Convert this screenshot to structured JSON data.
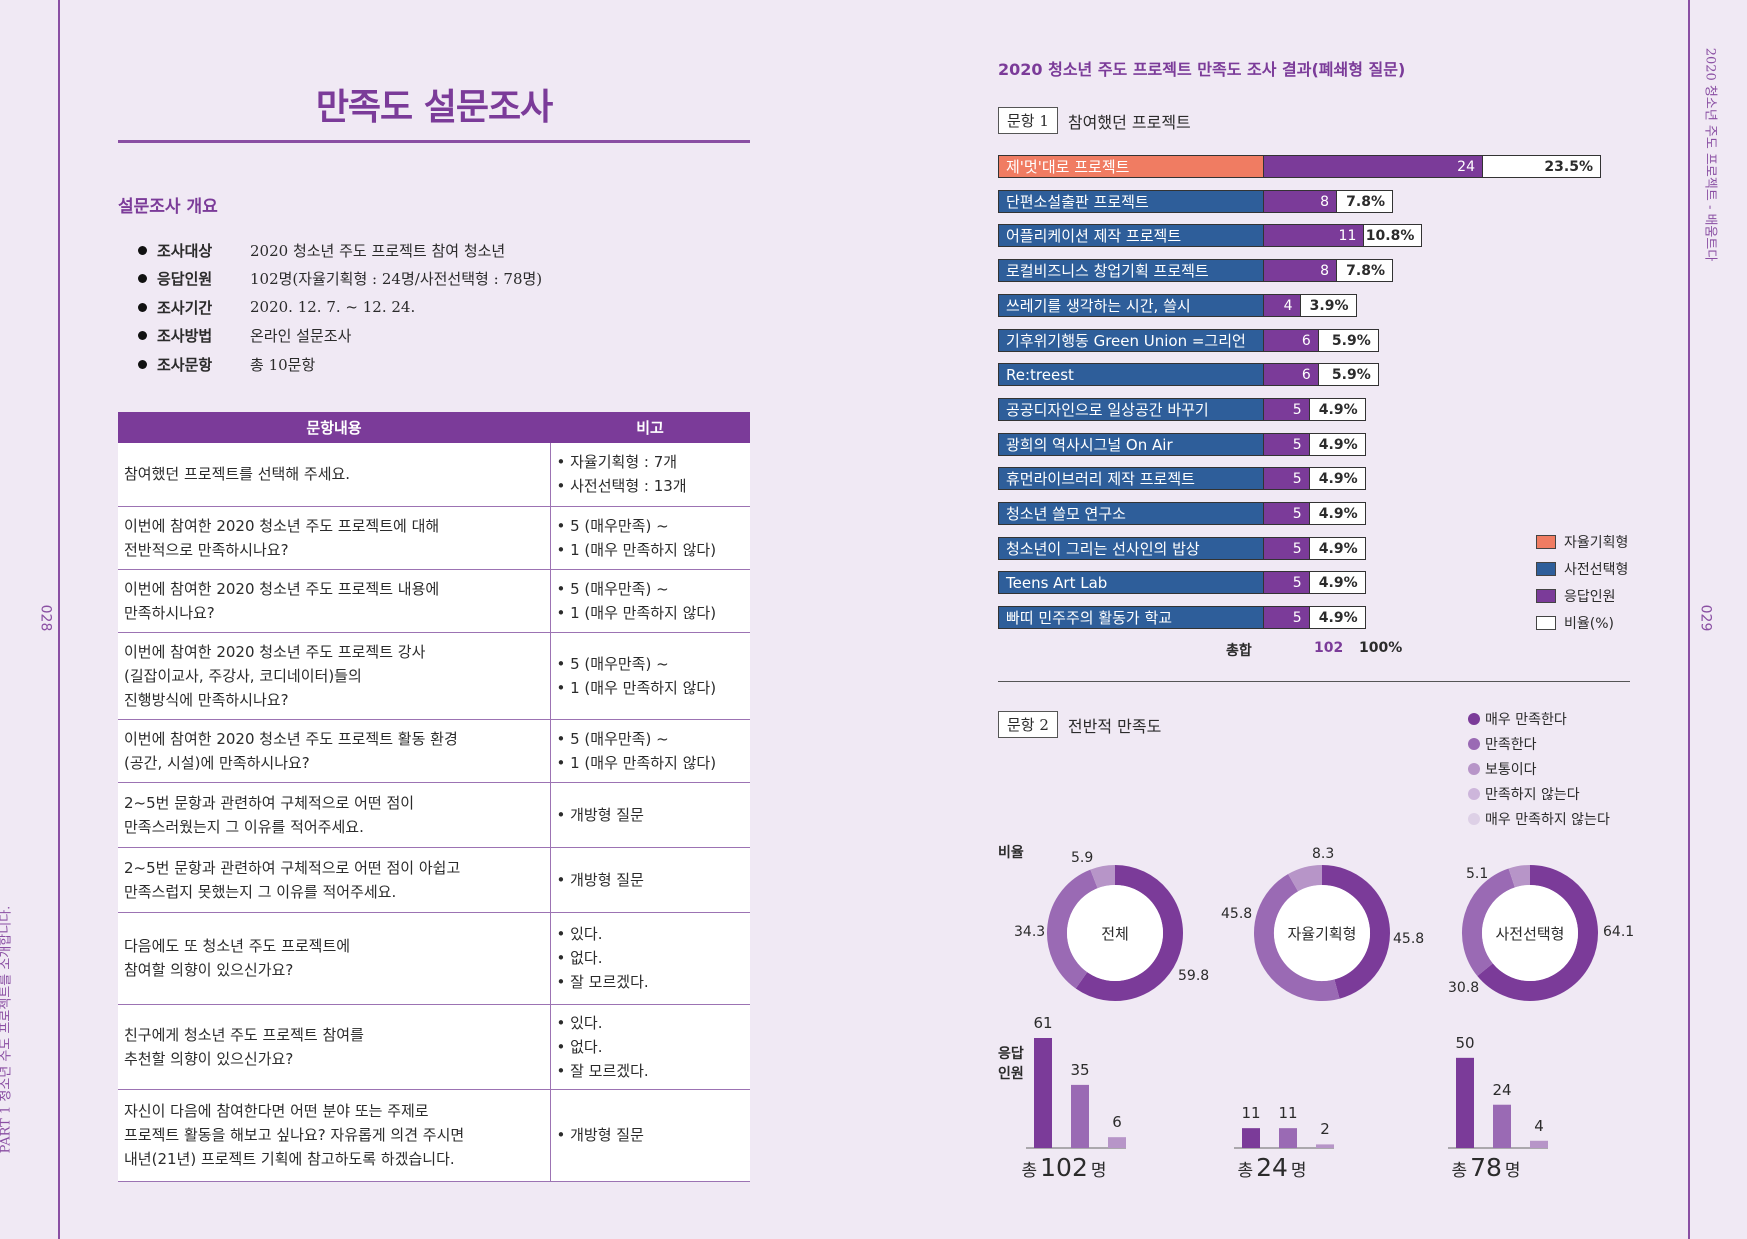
{
  "left_page": {
    "title": "만족도 설문조사",
    "section": "설문조사 개요",
    "overview": [
      {
        "key": "조사대상",
        "value": "2020 청소년 주도 프로젝트 참여 청소년"
      },
      {
        "key": "응답인원",
        "value": "102명(자율기획형 : 24명/사전선택형 : 78명)"
      },
      {
        "key": "조사기간",
        "value": "2020. 12. 7. ~ 12. 24."
      },
      {
        "key": "조사방법",
        "value": "온라인 설문조사"
      },
      {
        "key": "조사문항",
        "value": "총 10문항"
      }
    ],
    "table": {
      "headers": [
        "문항내용",
        "비고"
      ],
      "rows": [
        {
          "q": [
            "참여했던 프로젝트를 선택해 주세요."
          ],
          "note": [
            "• 자율기획형 : 7개",
            "• 사전선택형 : 13개"
          ]
        },
        {
          "q": [
            "이번에 참여한 2020 청소년 주도 프로젝트에 대해",
            "전반적으로 만족하시나요?"
          ],
          "note": [
            "• 5 (매우만족) ~",
            "• 1 (매우 만족하지 않다)"
          ]
        },
        {
          "q": [
            "이번에 참여한 2020 청소년 주도 프로젝트 내용에",
            "만족하시나요?"
          ],
          "note": [
            "• 5 (매우만족) ~",
            "• 1 (매우 만족하지 않다)"
          ]
        },
        {
          "q": [
            "이번에 참여한 2020 청소년 주도 프로젝트 강사",
            "(길잡이교사, 주강사, 코디네이터)들의",
            "진행방식에 만족하시나요?"
          ],
          "note": [
            "• 5 (매우만족) ~",
            "• 1 (매우 만족하지 않다)"
          ]
        },
        {
          "q": [
            "이번에 참여한 2020 청소년 주도 프로젝트 활동 환경",
            "(공간, 시설)에 만족하시나요?"
          ],
          "note": [
            "• 5 (매우만족) ~",
            "• 1 (매우 만족하지 않다)"
          ]
        },
        {
          "q": [
            "2~5번 문항과 관련하여 구체적으로 어떤 점이",
            "만족스러웠는지 그 이유를 적어주세요."
          ],
          "note": [
            "• 개방형 질문"
          ]
        },
        {
          "q": [
            "2~5번 문항과 관련하여 구체적으로 어떤 점이 아쉽고",
            "만족스럽지 못했는지 그 이유를 적어주세요."
          ],
          "note": [
            "• 개방형 질문"
          ]
        },
        {
          "q": [
            "다음에도 또 청소년 주도 프로젝트에",
            "참여할 의향이 있으신가요?"
          ],
          "note": [
            "• 있다.",
            "• 없다.",
            "• 잘 모르겠다."
          ]
        },
        {
          "q": [
            "친구에게 청소년 주도 프로젝트 참여를",
            "추천할 의향이 있으신가요?"
          ],
          "note": [
            "• 있다.",
            "• 없다.",
            "• 잘 모르겠다."
          ]
        },
        {
          "q": [
            "자신이 다음에 참여한다면 어떤 분야 또는 주제로",
            "프로젝트 활동을 해보고 싶나요? 자유롭게 의견 주시면",
            "내년(21년) 프로젝트 기획에 참고하도록 하겠습니다."
          ],
          "note": [
            "• 개방형 질문"
          ]
        }
      ]
    },
    "page_number": "028",
    "side_text": "PART 1 청소년 주도 프로젝트를 소개합니다."
  },
  "right_page": {
    "title": "2020 청소년 주도 프로젝트 만족도 조사 결과(폐쇄형 질문)",
    "page_number": "029",
    "side_text": "2020 청소년 주도 프로젝트 - 배움트다",
    "q1": {
      "box": "문항 1",
      "label": "참여했던 프로젝트",
      "total_label": "총합",
      "total_value": "102",
      "total_pct": "100%"
    },
    "q2": {
      "box": "문항 2",
      "label": "전반적 만족도",
      "ratio_label": "비율",
      "count_label": "응답\n인원"
    }
  },
  "chart_data": [
    {
      "type": "bar",
      "title": "참여했던 프로젝트",
      "categories": [
        "제'멋'대로 프로젝트",
        "단편소설출판 프로젝트",
        "어플리케이션 제작 프로젝트",
        "로컬비즈니스 창업기획 프로젝트",
        "쓰레기를 생각하는 시간, 쓸시",
        "기후위기행동 Green Union =그리언",
        "Re:treest",
        "공공디자인으로 일상공간 바꾸기",
        "광희의 역사시그널 On Air",
        "휴먼라이브러리 제작 프로젝트",
        "청소년 쓸모 연구소",
        "청소년이 그리는 선사인의 밥상",
        "Teens Art Lab",
        "빠띠 민주주의 활동가 학교"
      ],
      "groups": [
        "자율기획형",
        "사전선택형",
        "사전선택형",
        "사전선택형",
        "사전선택형",
        "사전선택형",
        "사전선택형",
        "사전선택형",
        "사전선택형",
        "사전선택형",
        "사전선택형",
        "사전선택형",
        "사전선택형",
        "사전선택형"
      ],
      "values": [
        24,
        8,
        11,
        8,
        4,
        6,
        6,
        5,
        5,
        5,
        5,
        5,
        5,
        5
      ],
      "percents": [
        "23.5%",
        "7.8%",
        "10.8%",
        "7.8%",
        "3.9%",
        "5.9%",
        "5.9%",
        "4.9%",
        "4.9%",
        "4.9%",
        "4.9%",
        "4.9%",
        "4.9%",
        "4.9%"
      ],
      "legend": [
        "자율기획형",
        "사전선택형",
        "응답인원",
        "비율(%)"
      ],
      "colors": {
        "self": "#f07c62",
        "pre": "#2e5e9a",
        "count": "#7b3b99",
        "pct": "#ffffff"
      }
    },
    {
      "type": "pie",
      "title": "전반적 만족도",
      "legend": [
        "매우 만족한다",
        "만족한다",
        "보통이다",
        "만족하지 않는다",
        "매우 만족하지 않는다"
      ],
      "colors": [
        "#7b3b99",
        "#9a6ab4",
        "#b795c8",
        "#cdb6db",
        "#ddd0e6"
      ],
      "groups": [
        {
          "name": "전체",
          "ratios": [
            59.8,
            34.3,
            5.9
          ],
          "counts": [
            61,
            35,
            6
          ],
          "total_prefix": "총",
          "total": "102",
          "unit": "명"
        },
        {
          "name": "자율기획형",
          "ratios": [
            45.8,
            45.8,
            8.3
          ],
          "counts": [
            11,
            11,
            2
          ],
          "total_prefix": "총",
          "total": "24",
          "unit": "명"
        },
        {
          "name": "사전선택형",
          "ratios": [
            64.1,
            30.8,
            5.1
          ],
          "counts": [
            50,
            24,
            4
          ],
          "total_prefix": "총",
          "total": "78",
          "unit": "명"
        }
      ]
    }
  ]
}
